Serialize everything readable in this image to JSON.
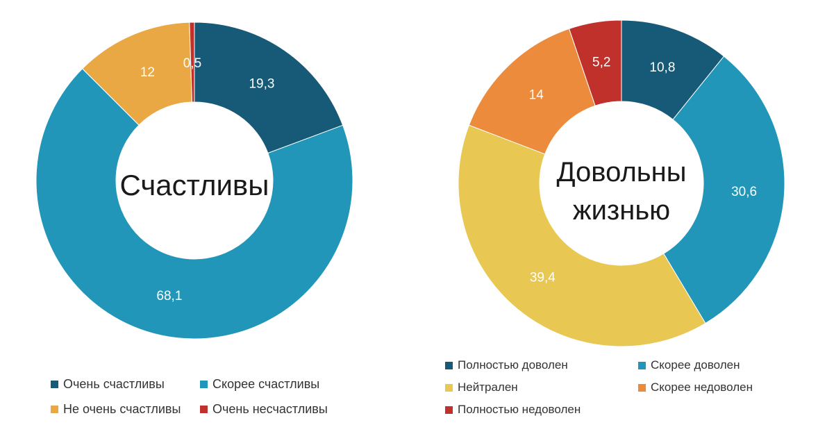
{
  "chart_data": [
    {
      "type": "donut",
      "title": "Счастливы",
      "series": [
        {
          "name": "Очень счастливы",
          "value": 19.3,
          "label": "19,3",
          "color": "#175a77"
        },
        {
          "name": "Скорее счастливы",
          "value": 68.1,
          "label": "68,1",
          "color": "#2196b8"
        },
        {
          "name": "Не очень счастливы",
          "value": 12,
          "label": "12",
          "color": "#e9a843"
        },
        {
          "name": "Очень несчастливы",
          "value": 0.5,
          "label": "0,5",
          "color": "#c0312b"
        }
      ],
      "legend_position": "bottom"
    },
    {
      "type": "donut",
      "title": "Довольны жизнью",
      "title_lines": [
        "Довольны",
        "жизнью"
      ],
      "series": [
        {
          "name": "Полностью доволен",
          "value": 10.8,
          "label": "10,8",
          "color": "#175a77"
        },
        {
          "name": "Скорее доволен",
          "value": 30.6,
          "label": "30,6",
          "color": "#2196b8"
        },
        {
          "name": "Нейтрален",
          "value": 39.4,
          "label": "39,4",
          "color": "#e8c752"
        },
        {
          "name": "Скорее недоволен",
          "value": 14,
          "label": "14",
          "color": "#ec8b3b"
        },
        {
          "name": "Полностью недоволен",
          "value": 5.2,
          "label": "5,2",
          "color": "#c0312b"
        }
      ],
      "legend_position": "bottom"
    }
  ]
}
